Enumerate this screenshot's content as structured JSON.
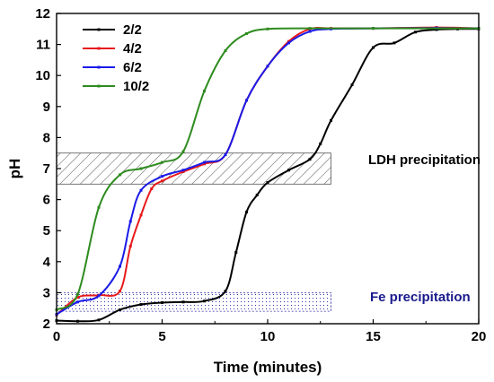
{
  "chart_data": {
    "type": "line",
    "xlabel": "Time (minutes)",
    "ylabel": "pH",
    "xlim": [
      0,
      20
    ],
    "ylim": [
      2,
      12
    ],
    "x_ticks": [
      0,
      5,
      10,
      15,
      20
    ],
    "y_ticks": [
      2,
      3,
      4,
      5,
      6,
      7,
      8,
      9,
      10,
      11,
      12
    ],
    "grid": false,
    "legend_position": "top-left",
    "series": [
      {
        "name": "2/2",
        "color": "#000000",
        "points": [
          [
            0,
            2.1
          ],
          [
            1,
            2.08
          ],
          [
            2,
            2.12
          ],
          [
            3,
            2.45
          ],
          [
            4,
            2.62
          ],
          [
            5,
            2.68
          ],
          [
            6,
            2.7
          ],
          [
            7,
            2.73
          ],
          [
            8,
            3.05
          ],
          [
            8.5,
            4.3
          ],
          [
            9,
            5.6
          ],
          [
            9.5,
            6.15
          ],
          [
            10,
            6.55
          ],
          [
            11,
            6.95
          ],
          [
            12,
            7.3
          ],
          [
            12.5,
            7.8
          ],
          [
            13,
            8.55
          ],
          [
            14,
            9.7
          ],
          [
            15,
            10.9
          ],
          [
            16,
            11.05
          ],
          [
            17,
            11.4
          ],
          [
            18,
            11.48
          ],
          [
            19,
            11.5
          ],
          [
            20,
            11.5
          ]
        ]
      },
      {
        "name": "4/2",
        "color": "#e8191b",
        "points": [
          [
            0,
            2.28
          ],
          [
            1,
            2.85
          ],
          [
            2,
            2.92
          ],
          [
            3,
            3.05
          ],
          [
            3.5,
            4.5
          ],
          [
            4,
            5.5
          ],
          [
            4.5,
            6.35
          ],
          [
            5,
            6.6
          ],
          [
            6,
            6.9
          ],
          [
            7,
            7.15
          ],
          [
            8,
            7.45
          ],
          [
            9,
            9.2
          ],
          [
            10,
            10.3
          ],
          [
            11,
            11.1
          ],
          [
            12,
            11.5
          ],
          [
            13,
            11.52
          ],
          [
            15,
            11.52
          ],
          [
            18,
            11.55
          ],
          [
            20,
            11.52
          ]
        ]
      },
      {
        "name": "6/2",
        "color": "#1a1ae8",
        "points": [
          [
            0,
            2.3
          ],
          [
            1,
            2.7
          ],
          [
            2,
            2.9
          ],
          [
            3,
            3.85
          ],
          [
            3.5,
            5.3
          ],
          [
            4,
            6.3
          ],
          [
            5,
            6.75
          ],
          [
            6,
            6.95
          ],
          [
            7,
            7.2
          ],
          [
            8,
            7.45
          ],
          [
            9,
            9.2
          ],
          [
            10,
            10.3
          ],
          [
            11,
            11.05
          ],
          [
            12,
            11.42
          ],
          [
            13,
            11.5
          ],
          [
            15,
            11.52
          ],
          [
            18,
            11.53
          ],
          [
            20,
            11.52
          ]
        ]
      },
      {
        "name": "10/2",
        "color": "#2e8b1f",
        "points": [
          [
            0,
            2.45
          ],
          [
            1,
            2.95
          ],
          [
            2,
            5.75
          ],
          [
            3,
            6.8
          ],
          [
            4,
            7.0
          ],
          [
            5,
            7.2
          ],
          [
            6,
            7.55
          ],
          [
            7,
            9.5
          ],
          [
            8,
            10.8
          ],
          [
            9,
            11.35
          ],
          [
            10,
            11.5
          ],
          [
            12,
            11.52
          ],
          [
            15,
            11.52
          ],
          [
            20,
            11.52
          ]
        ]
      }
    ],
    "annotations": [
      {
        "text": "LDH precipitation",
        "color": "#000000",
        "band": [
          6.5,
          7.5
        ],
        "x_range": [
          0,
          13
        ],
        "hatch": "#555555"
      },
      {
        "text": "Fe precipitation",
        "color": "#1a1a8c",
        "band": [
          2.4,
          3.0
        ],
        "x_range": [
          0,
          13
        ],
        "hatch": "#3333aa"
      }
    ]
  }
}
